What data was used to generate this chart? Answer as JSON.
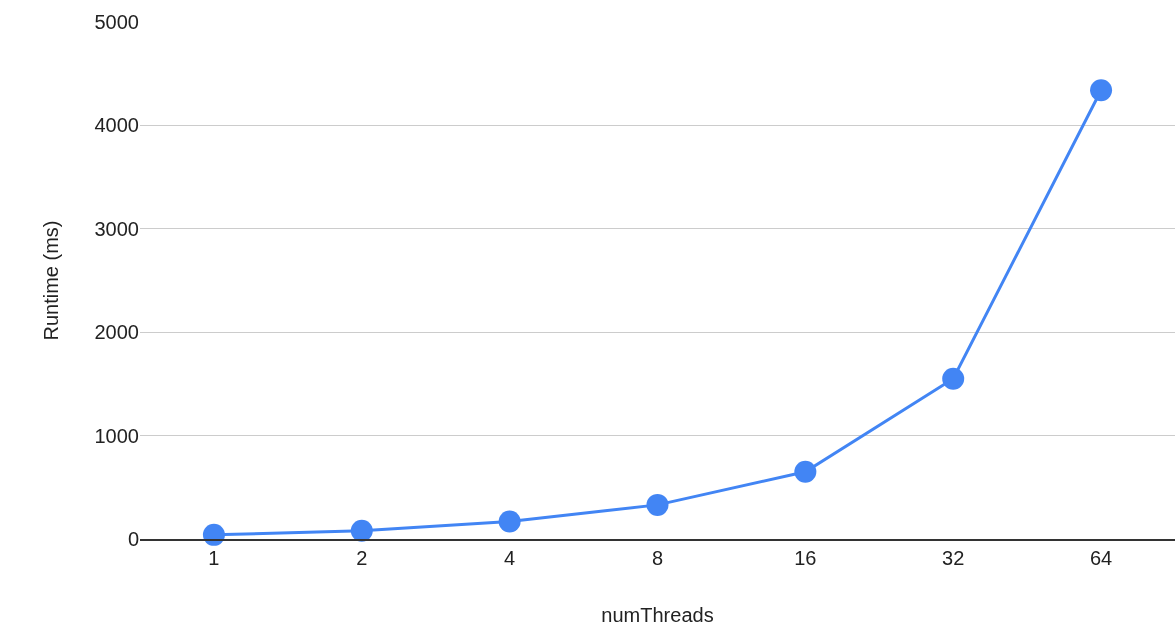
{
  "chart_data": {
    "type": "line",
    "xlabel": "numThreads",
    "ylabel": "Runtime (ms)",
    "categories": [
      "1",
      "2",
      "4",
      "8",
      "16",
      "32",
      "64"
    ],
    "series": [
      {
        "color": "#4285f4",
        "values": [
          40,
          80,
          170,
          330,
          650,
          1550,
          4340
        ]
      }
    ],
    "ylim": [
      0,
      5000
    ],
    "yticks": [
      0,
      1000,
      2000,
      3000,
      4000,
      5000
    ],
    "grid": "y",
    "marker": "circle",
    "line_style": "solid"
  }
}
